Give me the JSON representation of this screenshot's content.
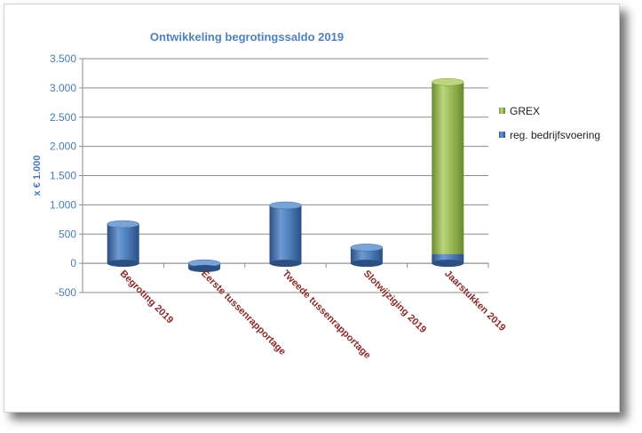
{
  "chart_data": {
    "type": "bar",
    "stacked": true,
    "title": "Ontwikkeling begrotingssaldo 2019",
    "ylabel": "x € 1.000",
    "xlabel": "",
    "ylim": [
      -500,
      3500
    ],
    "yticks": [
      -500,
      0,
      500,
      1000,
      1500,
      2000,
      2500,
      3000,
      3500
    ],
    "ytick_labels": [
      "-500",
      "0",
      "500",
      "1.000",
      "1.500",
      "2.000",
      "2.500",
      "3.000",
      "3.500"
    ],
    "categories": [
      "Begroting 2019",
      "Eerste tussenrapportage",
      "Tweede tussenrapportage",
      "Slotwijziging 2019",
      "Jaarstukken 2019"
    ],
    "series": [
      {
        "name": "reg. bedrijfsvoering",
        "color": "#4f81bd",
        "values": [
          670,
          -90,
          990,
          270,
          160
        ]
      },
      {
        "name": "GREX",
        "color": "#9bbb59",
        "values": [
          0,
          0,
          0,
          0,
          2940
        ]
      }
    ],
    "grid": true,
    "legend_position": "right"
  }
}
